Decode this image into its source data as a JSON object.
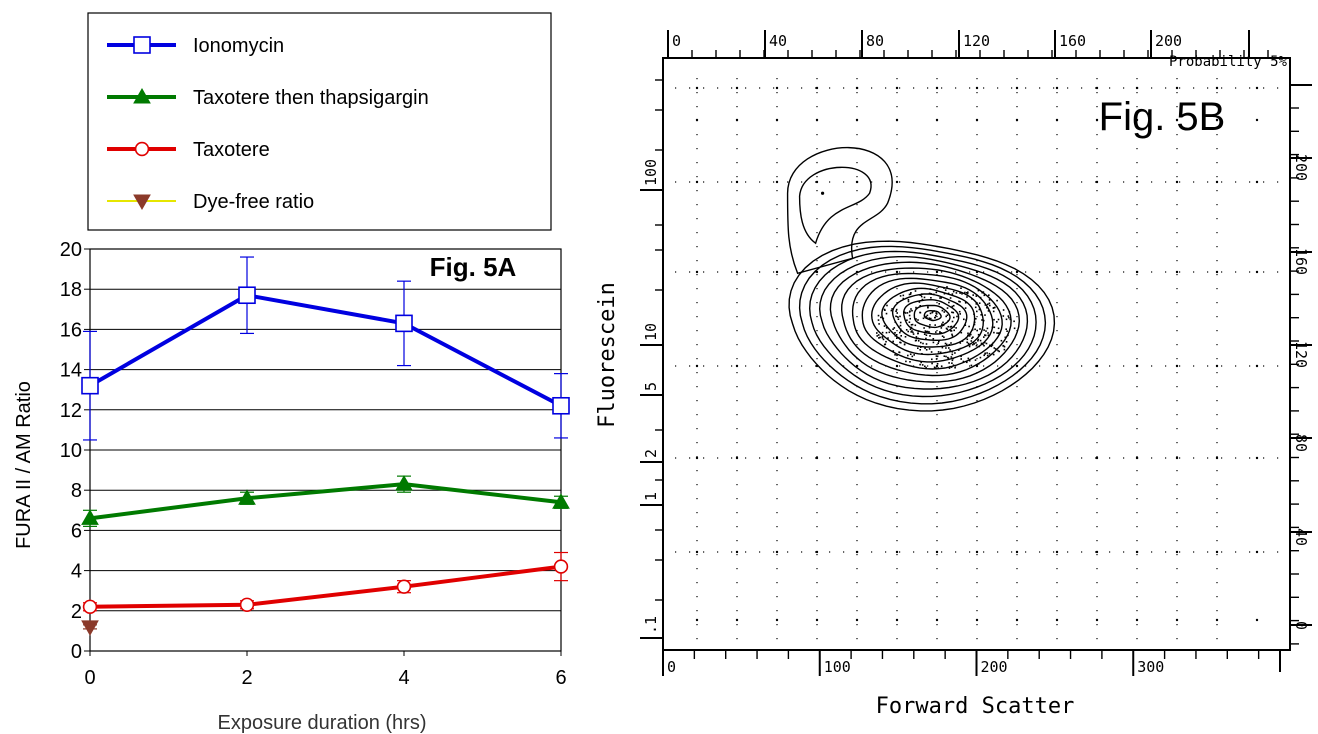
{
  "chart_data": [
    {
      "type": "line",
      "title": "Fig. 5A",
      "xlabel": "Exposure duration (hrs)",
      "ylabel": "FURA II / AM Ratio",
      "xlim": [
        0,
        6
      ],
      "ylim": [
        0,
        20
      ],
      "x_ticks": [
        "0",
        "2",
        "4",
        "6"
      ],
      "y_ticks": [
        "0",
        "2",
        "4",
        "6",
        "8",
        "10",
        "12",
        "14",
        "16",
        "18",
        "20"
      ],
      "grid": true,
      "legend_position": "top-left",
      "series": [
        {
          "name": "Ionomycin",
          "color": "#0000e0",
          "marker": "open-square",
          "x": [
            0,
            2,
            4,
            6
          ],
          "y": [
            13.2,
            17.7,
            16.3,
            12.2
          ],
          "err": [
            2.7,
            1.9,
            2.1,
            1.6
          ]
        },
        {
          "name": "Taxotere then thapsigargin",
          "color": "#007a00",
          "marker": "filled-triangle",
          "x": [
            0,
            2,
            4,
            6
          ],
          "y": [
            6.6,
            7.6,
            8.3,
            7.4
          ],
          "err": [
            0.4,
            0.3,
            0.4,
            0.3
          ]
        },
        {
          "name": "Taxotere",
          "color": "#e00000",
          "marker": "open-circle",
          "x": [
            0,
            2,
            4,
            6
          ],
          "y": [
            2.2,
            2.3,
            3.2,
            4.2
          ],
          "err": [
            0.2,
            0.2,
            0.3,
            0.7
          ]
        },
        {
          "name": "Dye-free ratio",
          "color": "#8b3a2a",
          "line_color": "#e6e600",
          "marker": "filled-down-triangle",
          "x": [
            0
          ],
          "y": [
            1.2
          ],
          "err": [
            0.1
          ]
        }
      ]
    },
    {
      "type": "contour",
      "title": "Fig. 5B",
      "xlabel": "Forward Scatter",
      "ylabel": "Fluorescein",
      "annotation": "Probability 5%",
      "bottom_ticks": [
        "0",
        "100",
        "200",
        "300"
      ],
      "top_ticks": [
        "0",
        "40",
        "80",
        "120",
        "160",
        "200"
      ],
      "left_ticks": [
        ".1",
        "1",
        "2",
        "5",
        "10",
        "100"
      ],
      "right_ticks": [
        "0",
        "40",
        "80",
        "120",
        "160",
        "200"
      ],
      "xlim": [
        0,
        400
      ],
      "main_peak": {
        "x": 172,
        "y_fraction": 0.56
      },
      "secondary_peak": {
        "x": 105,
        "y_fraction": 0.78
      }
    }
  ]
}
